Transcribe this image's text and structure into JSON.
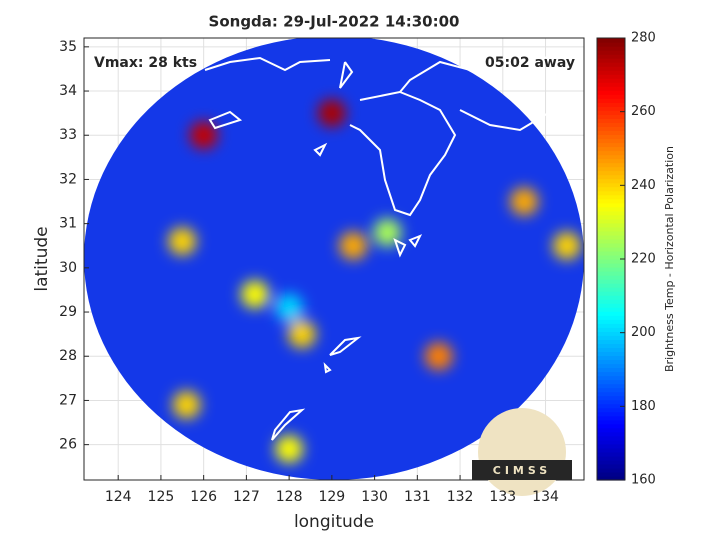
{
  "chart_data": {
    "type": "heatmap",
    "title": "Songda: 29-Jul-2022 14:30:00",
    "annotations": [
      "Vmax: 28 kts",
      "05:02 away"
    ],
    "xlabel": "longitude",
    "ylabel": "latitude",
    "colorbar_label": "Brightness Temp - Horizontal Polarization",
    "logo_text": "CIMSS",
    "xlim": [
      123.2,
      134.9
    ],
    "ylim": [
      25.2,
      35.2
    ],
    "xticks": [
      124,
      125,
      126,
      127,
      128,
      129,
      130,
      131,
      132,
      133,
      134
    ],
    "yticks": [
      26,
      27,
      28,
      29,
      30,
      31,
      32,
      33,
      34,
      35
    ],
    "clim": [
      160,
      280
    ],
    "cticks": [
      160,
      180,
      200,
      220,
      240,
      260,
      280
    ],
    "colormap": "jet",
    "grid": true,
    "x": [
      128.0,
      130.3,
      128.3,
      129.5,
      127.2,
      125.5,
      133.5,
      134.5,
      128.0,
      125.6,
      131.5,
      126.0,
      129.0
    ],
    "y": [
      29.1,
      30.8,
      28.5,
      30.5,
      29.4,
      30.6,
      31.5,
      30.5,
      25.9,
      26.9,
      28.0,
      33.0,
      33.5
    ],
    "values": [
      200,
      225,
      240,
      245,
      235,
      240,
      245,
      240,
      235,
      240,
      250,
      272,
      275
    ]
  }
}
